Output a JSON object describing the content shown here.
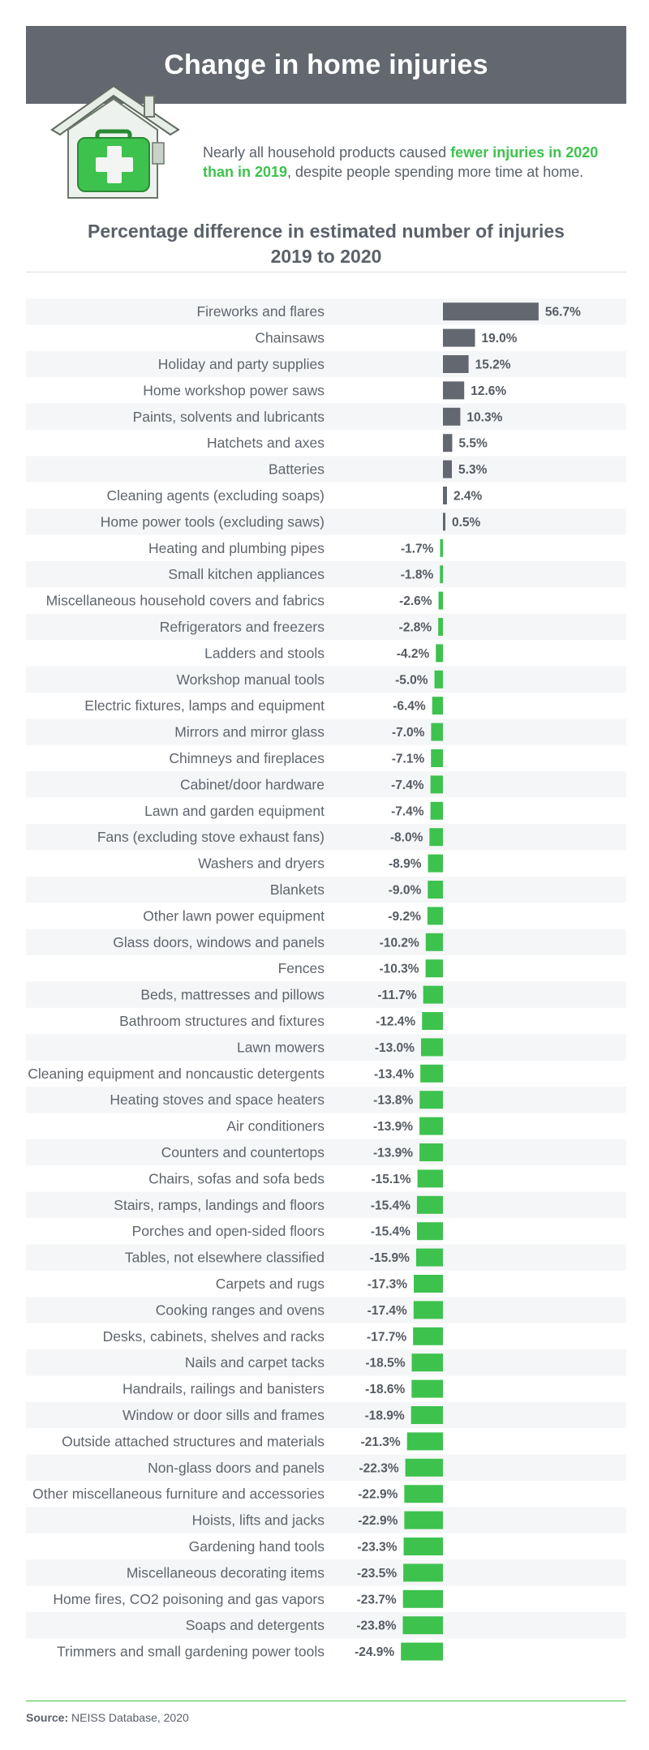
{
  "header": {
    "title": "Change in home injuries"
  },
  "intro": {
    "text_before": "Nearly all household products caused ",
    "highlight": "fewer injuries in 2020 than in 2019",
    "text_after": ", despite people spending more time at home."
  },
  "colors": {
    "banner": "#636870",
    "positive_bar": "#636870",
    "negative_bar": "#3ec24e",
    "stripe": "#f5f6f7",
    "highlight_text": "#3ec24e"
  },
  "icons": {
    "house": "first-aid-house-icon"
  },
  "chart_data": {
    "type": "bar",
    "orientation": "horizontal",
    "title": "Percentage difference in estimated number of injuries",
    "subtitle": "2019 to 2020",
    "xlabel": "",
    "ylabel": "",
    "value_suffix": "%",
    "xlim": [
      -25,
      57
    ],
    "categories": [
      "Fireworks and flares",
      "Chainsaws",
      "Holiday and party supplies",
      "Home workshop power saws",
      "Paints, solvents and lubricants",
      "Hatchets and axes",
      "Batteries",
      "Cleaning agents (excluding soaps)",
      "Home power tools (excluding saws)",
      "Heating and plumbing pipes",
      "Small kitchen appliances",
      "Miscellaneous household covers and fabrics",
      "Refrigerators and freezers",
      "Ladders and stools",
      "Workshop manual tools",
      "Electric fixtures, lamps and equipment",
      "Mirrors and mirror glass",
      "Chimneys and fireplaces",
      "Cabinet/door hardware",
      "Lawn and garden equipment",
      "Fans (excluding stove exhaust fans)",
      "Washers and dryers",
      "Blankets",
      "Other lawn power equipment",
      "Glass doors, windows and panels",
      "Fences",
      "Beds, mattresses and pillows",
      "Bathroom structures and fixtures",
      "Lawn mowers",
      "Cleaning equipment and noncaustic detergents",
      "Heating stoves and space heaters",
      "Air conditioners",
      "Counters and countertops",
      "Chairs, sofas and sofa beds",
      "Stairs, ramps, landings and floors",
      "Porches and open-sided floors",
      "Tables, not elsewhere classified",
      "Carpets and rugs",
      "Cooking ranges and ovens",
      "Desks, cabinets, shelves and racks",
      "Nails and carpet tacks",
      "Handrails, railings and banisters",
      "Window or door sills and frames",
      "Outside attached structures and materials",
      "Non-glass doors and panels",
      "Other miscellaneous furniture and accessories",
      "Hoists, lifts and jacks",
      "Gardening hand tools",
      "Miscellaneous decorating items",
      "Home fires, CO2 poisoning and gas vapors",
      "Soaps and detergents",
      "Trimmers and small gardening power tools"
    ],
    "values": [
      56.7,
      19.0,
      15.2,
      12.6,
      10.3,
      5.5,
      5.3,
      2.4,
      0.5,
      -1.7,
      -1.8,
      -2.6,
      -2.8,
      -4.2,
      -5.0,
      -6.4,
      -7.0,
      -7.1,
      -7.4,
      -7.4,
      -8.0,
      -8.9,
      -9.0,
      -9.2,
      -10.2,
      -10.3,
      -11.7,
      -12.4,
      -13.0,
      -13.4,
      -13.8,
      -13.9,
      -13.9,
      -15.1,
      -15.4,
      -15.4,
      -15.9,
      -17.3,
      -17.4,
      -17.7,
      -18.5,
      -18.6,
      -18.9,
      -21.3,
      -22.3,
      -22.9,
      -22.9,
      -23.3,
      -23.5,
      -23.7,
      -23.8,
      -24.9
    ],
    "value_labels": [
      "56.7%",
      "19.0%",
      "15.2%",
      "12.6%",
      "10.3%",
      "5.5%",
      "5.3%",
      "2.4%",
      "0.5%",
      "-1.7%",
      "-1.8%",
      "-2.6%",
      "-2.8%",
      "-4.2%",
      "-5.0%",
      "-6.4%",
      "-7.0%",
      "-7.1%",
      "-7.4%",
      "-7.4%",
      "-8.0%",
      "-8.9%",
      "-9.0%",
      "-9.2%",
      "-10.2%",
      "-10.3%",
      "-11.7%",
      "-12.4%",
      "-13.0%",
      "-13.4%",
      "-13.8%",
      "-13.9%",
      "-13.9%",
      "-15.1%",
      "-15.4%",
      "-15.4%",
      "-15.9%",
      "-17.3%",
      "-17.4%",
      "-17.7%",
      "-18.5%",
      "-18.6%",
      "-18.9%",
      "-21.3%",
      "-22.3%",
      "-22.9%",
      "-22.9%",
      "-23.3%",
      "-23.5%",
      "-23.7%",
      "-23.8%",
      "-24.9%"
    ],
    "grid": false,
    "legend": "none"
  },
  "source": {
    "label": "Source:",
    "text": "NEISS Database, 2020"
  }
}
